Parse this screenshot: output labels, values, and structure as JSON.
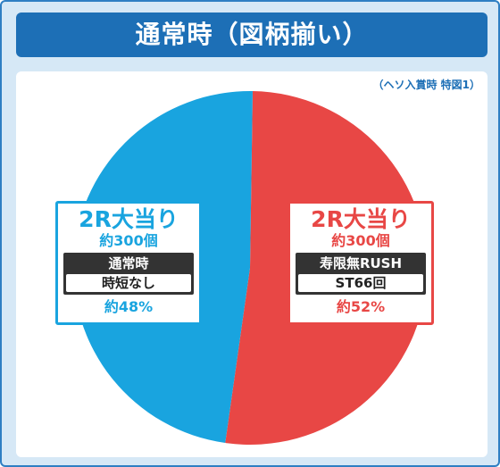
{
  "header": {
    "title": "通常時（図柄揃い）"
  },
  "note": "（ヘソ入賞時 特図1）",
  "chart_data": {
    "type": "pie",
    "title": "通常時（図柄揃い）",
    "slices": [
      {
        "label": "2R大当り",
        "value": 52,
        "balls": "約300個",
        "mode": "寿限無RUSH",
        "detail": "ST66回",
        "pct": "約52%",
        "color": "#e84745"
      },
      {
        "label": "2R大当り",
        "value": 48,
        "balls": "約300個",
        "mode": "通常時",
        "detail": "時短なし",
        "pct": "約48%",
        "color": "#19a4df"
      }
    ]
  }
}
